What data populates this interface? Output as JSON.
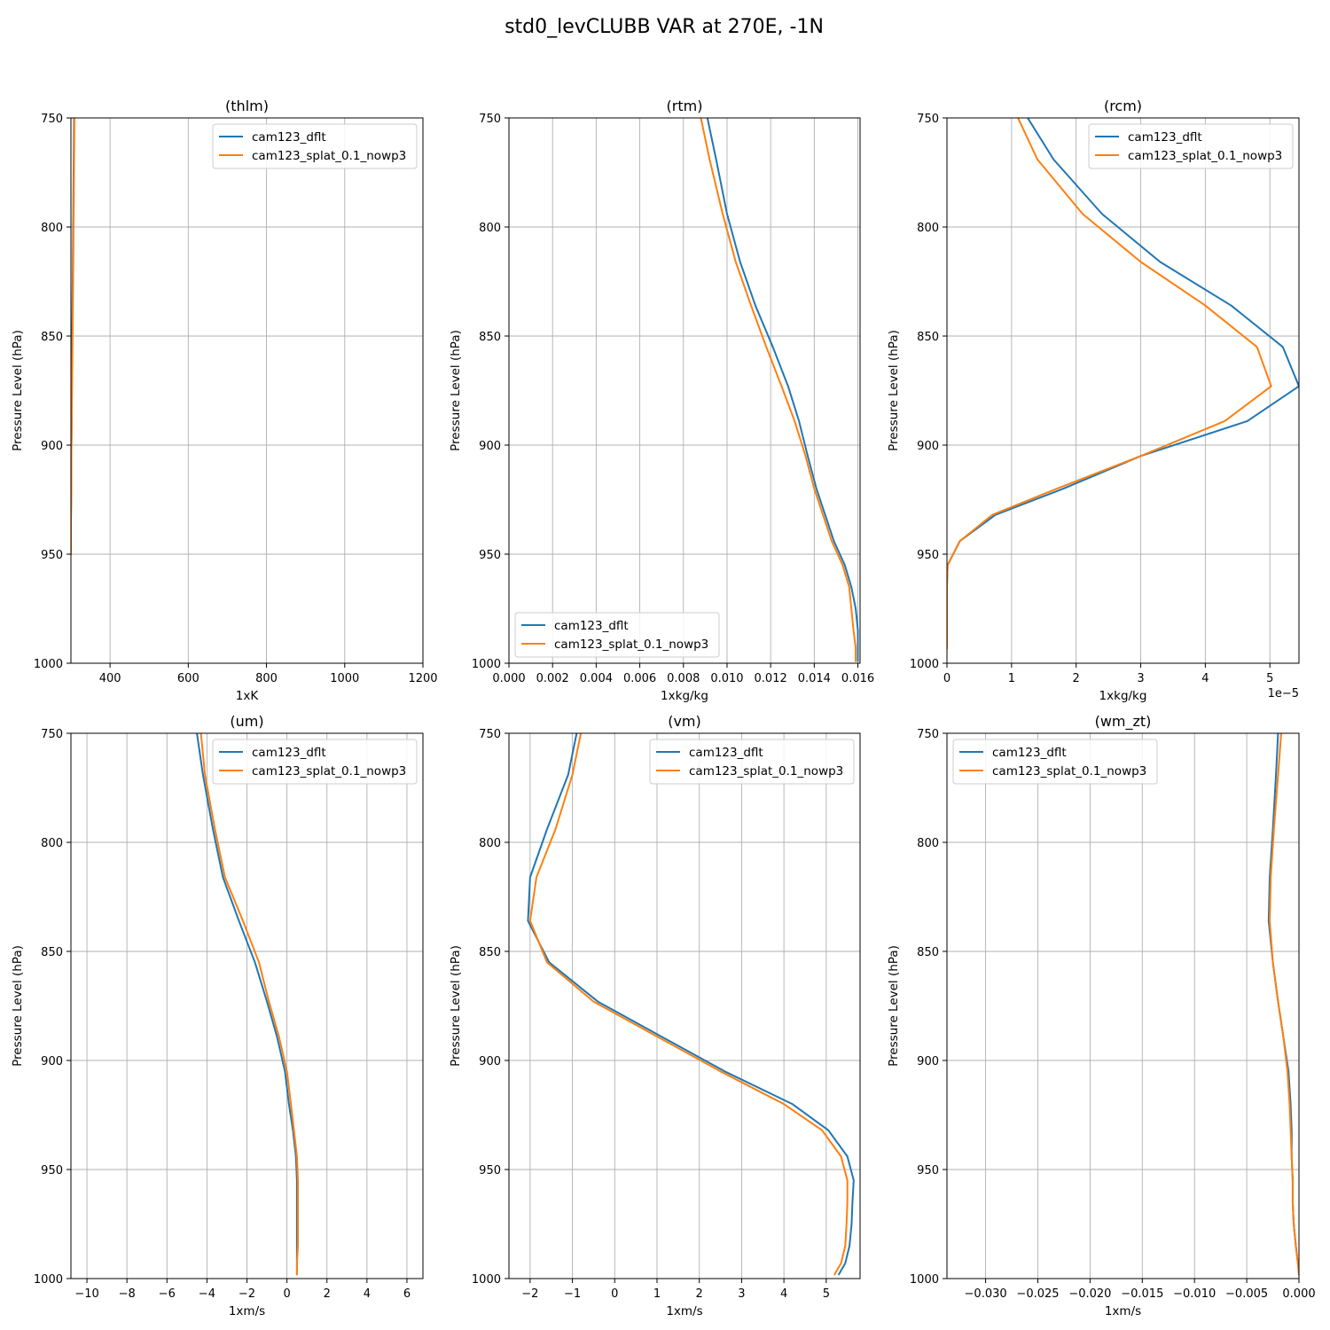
{
  "figure": {
    "title": "std0_levCLUBB VAR at 270E, -1N"
  },
  "chart_data": [
    {
      "type": "line",
      "title": "(thlm)",
      "xlabel": "1xK",
      "ylabel": "Pressure Level (hPa)",
      "xlim": [
        300,
        1200
      ],
      "ylim": [
        1000,
        750
      ],
      "y_inverted": true,
      "xticks": [
        400,
        600,
        800,
        1000,
        1200
      ],
      "xtick_labels": [
        "400",
        "600",
        "800",
        "1000",
        "1200"
      ],
      "yticks": [
        750,
        800,
        850,
        900,
        950,
        1000
      ],
      "ytick_labels": [
        "750",
        "800",
        "850",
        "900",
        "950",
        "1000"
      ],
      "x_offset_text": "",
      "grid": true,
      "legend": "top-right",
      "series": [
        {
          "name": "cam123_dflt",
          "color": "#1f77b4",
          "x": [
            308,
            307,
            306,
            305,
            304,
            303,
            302,
            302,
            301,
            301,
            300,
            300
          ],
          "y": [
            750,
            769,
            794,
            816,
            836,
            855,
            873,
            889,
            905,
            920,
            935,
            950
          ]
        },
        {
          "name": "cam123_splat_0.1_nowp3",
          "color": "#ff7f0e",
          "x": [
            309,
            308,
            307,
            306,
            305,
            304,
            303,
            302,
            301,
            301,
            300,
            300
          ],
          "y": [
            750,
            769,
            794,
            816,
            836,
            855,
            873,
            889,
            905,
            920,
            935,
            950
          ]
        }
      ]
    },
    {
      "type": "line",
      "title": "(rtm)",
      "xlabel": "1xkg/kg",
      "ylabel": "Pressure Level (hPa)",
      "xlim": [
        0,
        0.0161
      ],
      "ylim": [
        1000,
        750
      ],
      "y_inverted": true,
      "xticks": [
        0,
        0.002,
        0.004,
        0.006,
        0.008,
        0.01,
        0.012,
        0.014,
        0.016
      ],
      "xtick_labels": [
        "0.000",
        "0.002",
        "0.004",
        "0.006",
        "0.008",
        "0.010",
        "0.012",
        "0.014",
        "0.016"
      ],
      "yticks": [
        750,
        800,
        850,
        900,
        950,
        1000
      ],
      "ytick_labels": [
        "750",
        "800",
        "850",
        "900",
        "950",
        "1000"
      ],
      "x_offset_text": "",
      "grid": true,
      "legend": "bottom-left",
      "series": [
        {
          "name": "cam123_dflt",
          "color": "#1f77b4",
          "x": [
            0.0091,
            0.0095,
            0.01,
            0.0106,
            0.0113,
            0.0121,
            0.0128,
            0.0133,
            0.0137,
            0.0141,
            0.0145,
            0.0149,
            0.0154,
            0.0157,
            0.0159,
            0.016,
            0.016,
            0.016
          ],
          "y": [
            750,
            769,
            794,
            816,
            836,
            855,
            873,
            889,
            905,
            920,
            932,
            944,
            955,
            965,
            975,
            985,
            993,
            999
          ]
        },
        {
          "name": "cam123_splat_0.1_nowp3",
          "color": "#ff7f0e",
          "x": [
            0.0088,
            0.0092,
            0.0098,
            0.0104,
            0.0111,
            0.0118,
            0.0125,
            0.0131,
            0.0136,
            0.014,
            0.0144,
            0.0148,
            0.0153,
            0.0156,
            0.0157,
            0.0158,
            0.0159,
            0.0159
          ],
          "y": [
            750,
            769,
            794,
            816,
            836,
            855,
            873,
            889,
            905,
            920,
            932,
            944,
            955,
            965,
            975,
            985,
            993,
            999
          ]
        }
      ]
    },
    {
      "type": "line",
      "title": "(rcm)",
      "xlabel": "1xkg/kg",
      "ylabel": "Pressure Level (hPa)",
      "xlim": [
        0,
        5.45e-05
      ],
      "ylim": [
        1000,
        750
      ],
      "y_inverted": true,
      "xticks": [
        0,
        1e-05,
        2e-05,
        3e-05,
        4e-05,
        5e-05
      ],
      "xtick_labels": [
        "0",
        "1",
        "2",
        "3",
        "4",
        "5"
      ],
      "yticks": [
        750,
        800,
        850,
        900,
        950,
        1000
      ],
      "ytick_labels": [
        "750",
        "800",
        "850",
        "900",
        "950",
        "1000"
      ],
      "x_offset_text": "1e−5",
      "grid": true,
      "legend": "top-right",
      "series": [
        {
          "name": "cam123_dflt",
          "color": "#1f77b4",
          "x": [
            1.25e-05,
            1.65e-05,
            2.4e-05,
            3.3e-05,
            4.4e-05,
            5.2e-05,
            5.45e-05,
            4.65e-05,
            3e-05,
            1.8e-05,
            7.5e-06,
            2e-06,
            1e-07,
            0,
            0,
            0,
            0
          ],
          "y": [
            750,
            769,
            794,
            816,
            836,
            855,
            873,
            889,
            905,
            920,
            932,
            944,
            955,
            965,
            975,
            985,
            993
          ]
        },
        {
          "name": "cam123_splat_0.1_nowp3",
          "color": "#ff7f0e",
          "x": [
            1.1e-05,
            1.4e-05,
            2.1e-05,
            3e-05,
            4e-05,
            4.8e-05,
            5.02e-05,
            4.3e-05,
            3e-05,
            1.7e-05,
            7e-06,
            2e-06,
            1e-07,
            0,
            0,
            0,
            0
          ],
          "y": [
            750,
            769,
            794,
            816,
            836,
            855,
            873,
            889,
            905,
            920,
            932,
            944,
            955,
            965,
            975,
            985,
            993
          ]
        }
      ]
    },
    {
      "type": "line",
      "title": "(um)",
      "xlabel": "1xm/s",
      "ylabel": "Pressure Level (hPa)",
      "xlim": [
        -10.8,
        6.8
      ],
      "ylim": [
        1000,
        750
      ],
      "y_inverted": true,
      "xticks": [
        -10,
        -8,
        -6,
        -4,
        -2,
        0,
        2,
        4,
        6
      ],
      "xtick_labels": [
        "−10",
        "−8",
        "−6",
        "−4",
        "−2",
        "0",
        "2",
        "4",
        "6"
      ],
      "yticks": [
        750,
        800,
        850,
        900,
        950,
        1000
      ],
      "ytick_labels": [
        "750",
        "800",
        "850",
        "900",
        "950",
        "1000"
      ],
      "x_offset_text": "",
      "grid": true,
      "legend": "top-right",
      "series": [
        {
          "name": "cam123_dflt",
          "color": "#1f77b4",
          "x": [
            -4.5,
            -4.2,
            -3.7,
            -3.2,
            -2.4,
            -1.6,
            -1.0,
            -0.5,
            -0.1,
            0.1,
            0.3,
            0.45,
            0.5,
            0.5,
            0.5,
            0.5,
            0.5,
            0.5
          ],
          "y": [
            750,
            769,
            794,
            816,
            836,
            855,
            873,
            889,
            905,
            920,
            932,
            944,
            955,
            965,
            975,
            985,
            993,
            998
          ]
        },
        {
          "name": "cam123_splat_0.1_nowp3",
          "color": "#ff7f0e",
          "x": [
            -4.3,
            -4.1,
            -3.6,
            -3.1,
            -2.2,
            -1.4,
            -0.9,
            -0.4,
            0.0,
            0.2,
            0.35,
            0.5,
            0.55,
            0.55,
            0.55,
            0.55,
            0.5,
            0.5
          ],
          "y": [
            750,
            769,
            794,
            816,
            836,
            855,
            873,
            889,
            905,
            920,
            932,
            944,
            955,
            965,
            975,
            985,
            993,
            998
          ]
        }
      ]
    },
    {
      "type": "line",
      "title": "(vm)",
      "xlabel": "1xm/s",
      "ylabel": "Pressure Level (hPa)",
      "xlim": [
        -2.5,
        5.8
      ],
      "ylim": [
        1000,
        750
      ],
      "y_inverted": true,
      "xticks": [
        -2,
        -1,
        0,
        1,
        2,
        3,
        4,
        5
      ],
      "xtick_labels": [
        "−2",
        "−1",
        "0",
        "1",
        "2",
        "3",
        "4",
        "5"
      ],
      "yticks": [
        750,
        800,
        850,
        900,
        950,
        1000
      ],
      "ytick_labels": [
        "750",
        "800",
        "850",
        "900",
        "950",
        "1000"
      ],
      "x_offset_text": "",
      "grid": true,
      "legend": "top-right",
      "series": [
        {
          "name": "cam123_dflt",
          "color": "#1f77b4",
          "x": [
            -0.9,
            -1.1,
            -1.6,
            -2.0,
            -2.05,
            -1.55,
            -0.4,
            1.1,
            2.6,
            4.2,
            5.05,
            5.5,
            5.65,
            5.62,
            5.6,
            5.55,
            5.45,
            5.3
          ],
          "y": [
            750,
            769,
            794,
            816,
            836,
            855,
            873,
            889,
            905,
            920,
            932,
            944,
            955,
            965,
            975,
            985,
            993,
            998
          ]
        },
        {
          "name": "cam123_splat_0.1_nowp3",
          "color": "#ff7f0e",
          "x": [
            -0.8,
            -1.0,
            -1.4,
            -1.85,
            -2.0,
            -1.6,
            -0.5,
            1.0,
            2.5,
            4.0,
            4.9,
            5.35,
            5.5,
            5.5,
            5.48,
            5.45,
            5.35,
            5.2
          ],
          "y": [
            750,
            769,
            794,
            816,
            836,
            855,
            873,
            889,
            905,
            920,
            932,
            944,
            955,
            965,
            975,
            985,
            993,
            998
          ]
        }
      ]
    },
    {
      "type": "line",
      "title": "(wm_zt)",
      "xlabel": "1xm/s",
      "ylabel": "Pressure Level (hPa)",
      "xlim": [
        -0.0337,
        0.0
      ],
      "ylim": [
        1000,
        750
      ],
      "y_inverted": true,
      "xticks": [
        -0.03,
        -0.025,
        -0.02,
        -0.015,
        -0.01,
        -0.005,
        0.0
      ],
      "xtick_labels": [
        "−0.030",
        "−0.025",
        "−0.020",
        "−0.015",
        "−0.010",
        "−0.005",
        "0.000"
      ],
      "yticks": [
        750,
        800,
        850,
        900,
        950,
        1000
      ],
      "ytick_labels": [
        "750",
        "800",
        "850",
        "900",
        "950",
        "1000"
      ],
      "x_offset_text": "",
      "grid": true,
      "legend": "top-left",
      "series": [
        {
          "name": "cam123_dflt",
          "color": "#1f77b4",
          "x": [
            -0.002,
            -0.0022,
            -0.0025,
            -0.0028,
            -0.0029,
            -0.0025,
            -0.002,
            -0.0015,
            -0.001,
            -0.0008,
            -0.0007,
            -0.0007,
            -0.0006,
            -0.0006,
            -0.0005,
            -0.0003,
            -0.0001,
            0.0
          ],
          "y": [
            750,
            769,
            794,
            816,
            836,
            855,
            873,
            889,
            905,
            920,
            932,
            944,
            955,
            965,
            975,
            985,
            993,
            998
          ]
        },
        {
          "name": "cam123_splat_0.1_nowp3",
          "color": "#ff7f0e",
          "x": [
            -0.0017,
            -0.002,
            -0.0024,
            -0.0027,
            -0.0028,
            -0.0025,
            -0.002,
            -0.0015,
            -0.0011,
            -0.0009,
            -0.0008,
            -0.0007,
            -0.0006,
            -0.0006,
            -0.0005,
            -0.0003,
            -0.0001,
            0.0
          ],
          "y": [
            750,
            769,
            794,
            816,
            836,
            855,
            873,
            889,
            905,
            920,
            932,
            944,
            955,
            965,
            975,
            985,
            993,
            998
          ]
        }
      ]
    }
  ]
}
